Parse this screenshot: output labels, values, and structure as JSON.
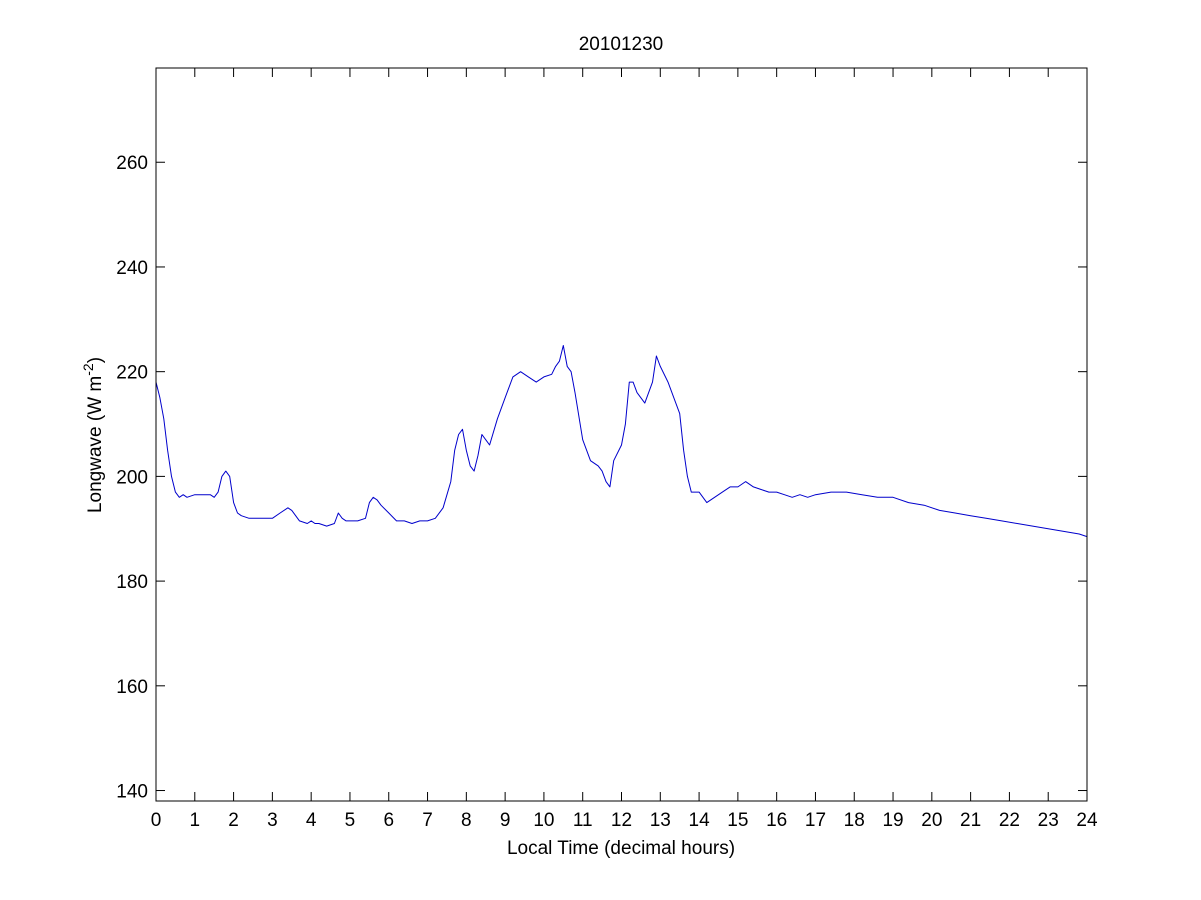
{
  "chart_data": {
    "type": "line",
    "title": "20101230",
    "xlabel": "Local Time (decimal hours)",
    "ylabel": "Longwave (W m",
    "ylabel_sup": "-2",
    "ylabel_end": ")",
    "xlim": [
      0,
      24
    ],
    "ylim": [
      138,
      278
    ],
    "xticks": [
      0,
      1,
      2,
      3,
      4,
      5,
      6,
      7,
      8,
      9,
      10,
      11,
      12,
      13,
      14,
      15,
      16,
      17,
      18,
      19,
      20,
      21,
      22,
      23,
      24
    ],
    "yticks": [
      140,
      160,
      180,
      200,
      220,
      240,
      260
    ],
    "grid": false,
    "line_color": "#0000cc",
    "series": [
      {
        "x": [
          0,
          0.1,
          0.2,
          0.3,
          0.4,
          0.5,
          0.6,
          0.7,
          0.8,
          1.0,
          1.2,
          1.4,
          1.5,
          1.6,
          1.7,
          1.8,
          1.9,
          2.0,
          2.1,
          2.2,
          2.4,
          2.6,
          2.8,
          3.0,
          3.2,
          3.4,
          3.5,
          3.7,
          3.9,
          4.0,
          4.1,
          4.2,
          4.4,
          4.6,
          4.7,
          4.8,
          4.9,
          5.0,
          5.2,
          5.4,
          5.5,
          5.6,
          5.7,
          5.8,
          6.0,
          6.2,
          6.4,
          6.6,
          6.8,
          7.0,
          7.2,
          7.4,
          7.6,
          7.7,
          7.8,
          7.9,
          8.0,
          8.1,
          8.2,
          8.3,
          8.4,
          8.5,
          8.6,
          8.8,
          9.0,
          9.2,
          9.4,
          9.6,
          9.8,
          10.0,
          10.2,
          10.3,
          10.4,
          10.5,
          10.6,
          10.7,
          10.8,
          11.0,
          11.2,
          11.4,
          11.5,
          11.6,
          11.7,
          11.8,
          12.0,
          12.1,
          12.2,
          12.3,
          12.4,
          12.6,
          12.8,
          12.9,
          13.0,
          13.2,
          13.4,
          13.5,
          13.6,
          13.7,
          13.8,
          14.0,
          14.2,
          14.4,
          14.6,
          14.8,
          15.0,
          15.2,
          15.4,
          15.6,
          15.8,
          16.0,
          16.2,
          16.4,
          16.6,
          16.8,
          17.0,
          17.4,
          17.8,
          18.2,
          18.6,
          19.0,
          19.4,
          19.8,
          20.2,
          20.6,
          21.0,
          21.4,
          21.8,
          22.2,
          22.6,
          23.0,
          23.4,
          23.8,
          24.0
        ],
        "y": [
          218,
          215,
          211,
          205,
          200,
          197,
          196,
          196.5,
          196,
          196.5,
          196.5,
          196.5,
          196,
          197,
          200,
          201,
          200,
          195,
          193,
          192.5,
          192,
          192,
          192,
          192,
          193,
          194,
          193.5,
          191.5,
          191,
          191.5,
          191,
          191,
          190.5,
          191,
          193,
          192,
          191.5,
          191.5,
          191.5,
          192,
          195,
          196,
          195.5,
          194.5,
          193,
          191.5,
          191.5,
          191,
          191.5,
          191.5,
          192,
          194,
          199,
          205,
          208,
          209,
          205,
          202,
          201,
          204,
          208,
          207,
          206,
          211,
          215,
          219,
          220,
          219,
          218,
          219,
          219.5,
          221,
          222,
          225,
          221,
          220,
          216,
          207,
          203,
          202,
          201,
          199,
          198,
          203,
          206,
          210,
          218,
          218,
          216,
          214,
          218,
          223,
          221,
          218,
          214,
          212,
          205,
          200,
          197,
          197,
          195,
          196,
          197,
          198,
          198,
          199,
          198,
          197.5,
          197,
          197,
          196.5,
          196,
          196.5,
          196,
          196.5,
          197,
          197,
          196.5,
          196,
          196,
          195,
          194.5,
          193.5,
          193,
          192.5,
          192,
          191.5,
          191,
          190.5,
          190,
          189.5,
          189,
          188.5
        ]
      }
    ]
  }
}
